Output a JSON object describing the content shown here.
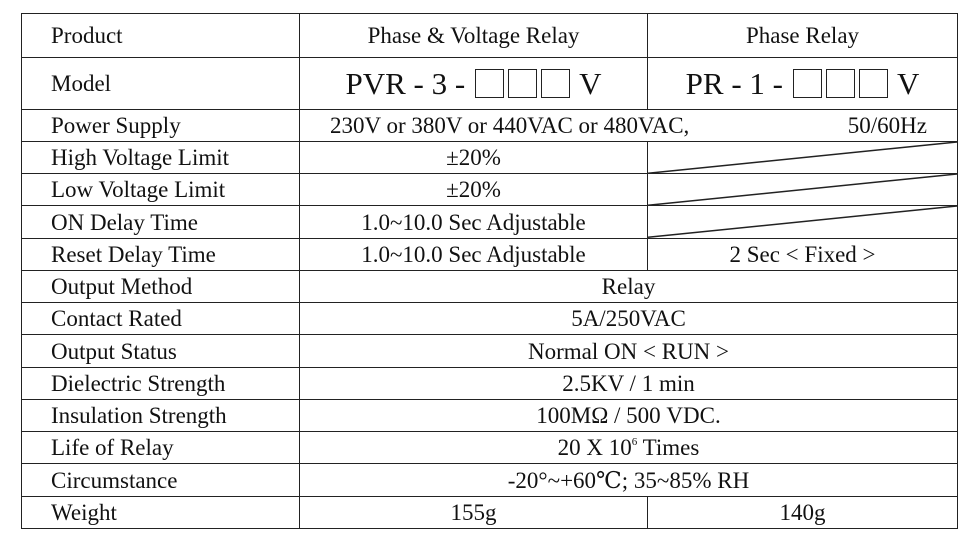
{
  "header": {
    "col_product": "Product",
    "col_pvr": "Phase & Voltage Relay",
    "col_pr": "Phase Relay"
  },
  "model": {
    "label": "Model",
    "pvr_prefix": "PVR - 3 -",
    "pvr_suffix": "V",
    "pr_prefix": "PR - 1 -",
    "pr_suffix": "V"
  },
  "power_supply": {
    "label": "Power Supply",
    "value": "230V or 380V or 440VAC or 480VAC,",
    "freq": "50/60Hz"
  },
  "high_voltage": {
    "label": "High Voltage Limit",
    "pvr": "±20%"
  },
  "low_voltage": {
    "label": "Low Voltage Limit",
    "pvr": "±20%"
  },
  "on_delay": {
    "label": "ON Delay Time",
    "pvr": "1.0~10.0 Sec Adjustable"
  },
  "reset_delay": {
    "label": "Reset Delay Time",
    "pvr": "1.0~10.0 Sec Adjustable",
    "pr": "2 Sec < Fixed >"
  },
  "output_method": {
    "label": "Output Method",
    "value": "Relay"
  },
  "contact_rated": {
    "label": "Contact Rated",
    "value": "5A/250VAC"
  },
  "output_status": {
    "label": "Output Status",
    "value": "Normal ON < RUN >"
  },
  "dielectric": {
    "label": "Dielectric Strength",
    "value": "2.5KV / 1 min"
  },
  "insulation": {
    "label": "Insulation Strength",
    "value": "100MΩ / 500 VDC."
  },
  "life": {
    "label": "Life of Relay",
    "value_pre": "20 X 10",
    "value_exp": "6",
    "value_post": " Times"
  },
  "circumstance": {
    "label": "Circumstance",
    "value": "-20°~+60℃; 35~85% RH"
  },
  "weight": {
    "label": "Weight",
    "pvr": "155g",
    "pr": "140g"
  }
}
